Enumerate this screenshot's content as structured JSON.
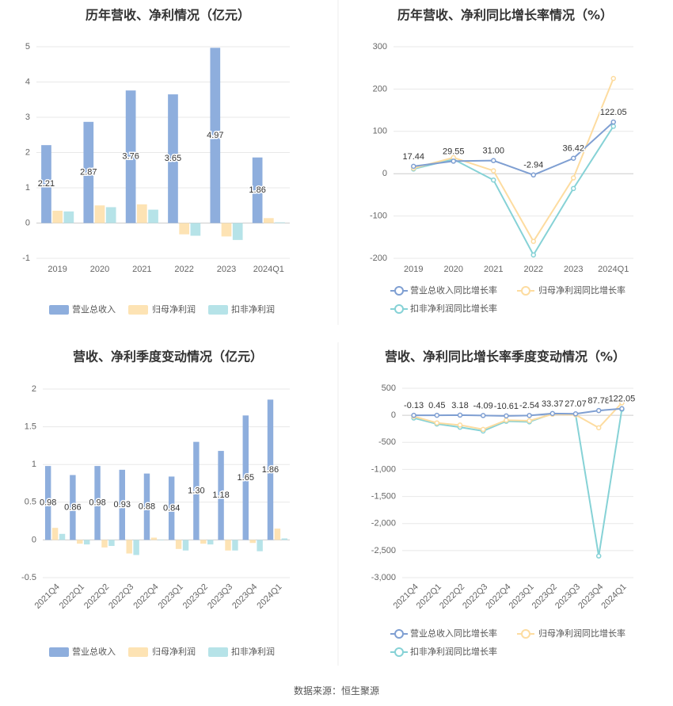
{
  "colors": {
    "revenue": "#8eaedd",
    "net_profit": "#fde3b4",
    "deducted_profit": "#b6e3e8",
    "revenue_line": "#7f9fd2",
    "net_profit_line": "#fddca0",
    "deducted_profit_line": "#86d2d6"
  },
  "source": "数据来源：恒生聚源",
  "chart_data": [
    {
      "type": "bar",
      "title": "历年营收、净利情况（亿元）",
      "categories": [
        "2019",
        "2020",
        "2021",
        "2022",
        "2023",
        "2024Q1"
      ],
      "ylim": [
        -1,
        5
      ],
      "yticks": [
        5,
        4,
        3,
        2,
        1,
        0,
        -1
      ],
      "grid": true,
      "legend_position": "bottom",
      "series": [
        {
          "name": "营业总收入",
          "values": [
            2.21,
            2.87,
            3.76,
            3.65,
            4.97,
            1.86
          ],
          "labels": [
            "2.21",
            "2.87",
            "3.76",
            "3.65",
            "4.97",
            "1.86"
          ]
        },
        {
          "name": "归母净利润",
          "values": [
            0.35,
            0.5,
            0.53,
            -0.32,
            -0.38,
            0.14
          ]
        },
        {
          "name": "扣非净利润",
          "values": [
            0.33,
            0.45,
            0.38,
            -0.36,
            -0.48,
            0.02
          ]
        }
      ]
    },
    {
      "type": "line",
      "title": "历年营收、净利同比增长率情况（%）",
      "categories": [
        "2019",
        "2020",
        "2021",
        "2022",
        "2023",
        "2024Q1"
      ],
      "ylim": [
        -200,
        300
      ],
      "yticks": [
        300,
        200,
        100,
        0,
        -100,
        -200
      ],
      "grid": true,
      "legend_position": "bottom",
      "series": [
        {
          "name": "营业总收入同比增长率",
          "values": [
            17.44,
            29.55,
            31.0,
            -2.94,
            36.42,
            122.05
          ],
          "labels": [
            "17.44",
            "29.55",
            "31.00",
            "-2.94",
            "36.42",
            "122.05"
          ]
        },
        {
          "name": "归母净利润同比增长率",
          "values": [
            13,
            38,
            7,
            -160,
            -10,
            225
          ]
        },
        {
          "name": "扣非净利润同比增长率",
          "values": [
            11,
            34,
            -15,
            -192,
            -35,
            112
          ]
        }
      ]
    },
    {
      "type": "bar",
      "title": "营收、净利季度变动情况（亿元）",
      "categories": [
        "2021Q4",
        "2022Q1",
        "2022Q2",
        "2022Q3",
        "2022Q4",
        "2023Q1",
        "2023Q2",
        "2023Q3",
        "2023Q4",
        "2024Q1"
      ],
      "ylim": [
        -0.5,
        2
      ],
      "yticks": [
        2,
        1.5,
        1,
        0.5,
        0,
        -0.5
      ],
      "grid": true,
      "legend_position": "bottom",
      "series": [
        {
          "name": "营业总收入",
          "values": [
            0.98,
            0.86,
            0.98,
            0.93,
            0.88,
            0.84,
            1.3,
            1.18,
            1.65,
            1.86
          ],
          "labels": [
            "0.98",
            "0.86",
            "0.98",
            "0.93",
            "0.88",
            "0.84",
            "1.30",
            "1.18",
            "1.65",
            "1.86"
          ]
        },
        {
          "name": "归母净利润",
          "values": [
            0.16,
            -0.05,
            -0.1,
            -0.18,
            0.03,
            -0.12,
            -0.05,
            -0.14,
            -0.04,
            0.15
          ]
        },
        {
          "name": "扣非净利润",
          "values": [
            0.08,
            -0.06,
            -0.08,
            -0.2,
            0.0,
            -0.14,
            -0.06,
            -0.14,
            -0.15,
            0.02
          ]
        }
      ]
    },
    {
      "type": "line",
      "title": "营收、净利同比增长率季度变动情况（%）",
      "categories": [
        "2021Q4",
        "2022Q1",
        "2022Q2",
        "2022Q3",
        "2022Q4",
        "2023Q1",
        "2023Q2",
        "2023Q3",
        "2023Q4",
        "2024Q1"
      ],
      "ylim": [
        -3000,
        500
      ],
      "yticks": [
        500,
        0,
        -500,
        -1000,
        -1500,
        -2000,
        -2500,
        -3000
      ],
      "ytick_labels": [
        "500",
        "0",
        "-500",
        "-1,000",
        "-1,500",
        "-2,000",
        "-2,500",
        "-3,000"
      ],
      "grid": true,
      "legend_position": "bottom",
      "series": [
        {
          "name": "营业总收入同比增长率",
          "values": [
            -0.13,
            0.45,
            3.18,
            -4.09,
            -10.61,
            -2.54,
            33.37,
            27.07,
            87.78,
            122.05
          ],
          "labels": [
            "-0.13",
            "0.45",
            "3.18",
            "-4.09",
            "-10.61",
            "-2.54",
            "33.37",
            "27.07",
            "87.78",
            "122.05"
          ]
        },
        {
          "name": "归母净利润同比增长率",
          "values": [
            -20,
            -140,
            -180,
            -260,
            -90,
            -100,
            20,
            10,
            -230,
            230
          ]
        },
        {
          "name": "扣非净利润同比增长率",
          "values": [
            -50,
            -160,
            -220,
            -290,
            -110,
            -120,
            30,
            15,
            -2600,
            110
          ]
        }
      ]
    }
  ]
}
